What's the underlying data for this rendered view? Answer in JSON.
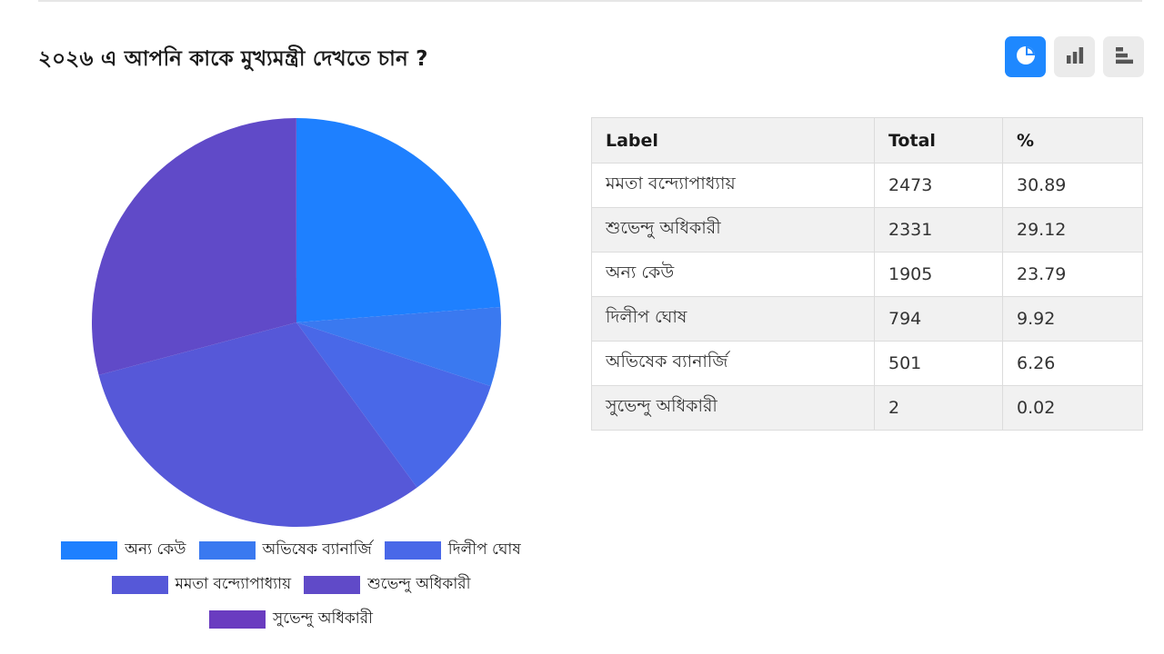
{
  "poll": {
    "title": "২০২৬ এ আপনি কাকে মুখ্যমন্ত্রী দেখতে চান ?"
  },
  "view_switch": [
    {
      "name": "pie-view-button",
      "icon": "pie-chart-icon",
      "active": true
    },
    {
      "name": "column-view-button",
      "icon": "column-chart-icon",
      "active": false
    },
    {
      "name": "bar-view-button",
      "icon": "bar-chart-icon",
      "active": false
    }
  ],
  "colors": {
    "accent": "#1e88ff",
    "inactive_button": "#ebebeb"
  },
  "table": {
    "headers": [
      "Label",
      "Total",
      "%"
    ],
    "rows": [
      [
        "মমতা বন্দ্যোপাধ্যায়",
        "2473",
        "30.89"
      ],
      [
        "শুভেন্দু অধিকারী",
        "2331",
        "29.12"
      ],
      [
        "অন্য কেউ",
        "1905",
        "23.79"
      ],
      [
        "দিলীপ ঘোষ",
        "794",
        "9.92"
      ],
      [
        "অভিষেক ব্যানার্জি",
        "501",
        "6.26"
      ],
      [
        "সুভেন্দু অধিকারী",
        "2",
        "0.02"
      ]
    ]
  },
  "chart_data": {
    "type": "pie",
    "title": "২০২৬ এ আপনি কাকে মুখ্যমন্ত্রী দেখতে চান ?",
    "legend_position": "bottom",
    "categories": [
      "অন্য কেউ",
      "অভিষেক ব্যানার্জি",
      "দিলীপ ঘোষ",
      "মমতা বন্দ্যোপাধ্যায়",
      "শুভেন্দু অধিকারী",
      "সুভেন্দু অধিকারী"
    ],
    "values": [
      1905,
      501,
      794,
      2473,
      2331,
      2
    ],
    "colors": [
      "#1e80ff",
      "#3a79f0",
      "#4968e8",
      "#5658d8",
      "#604ac8",
      "#6a3cc0"
    ]
  }
}
